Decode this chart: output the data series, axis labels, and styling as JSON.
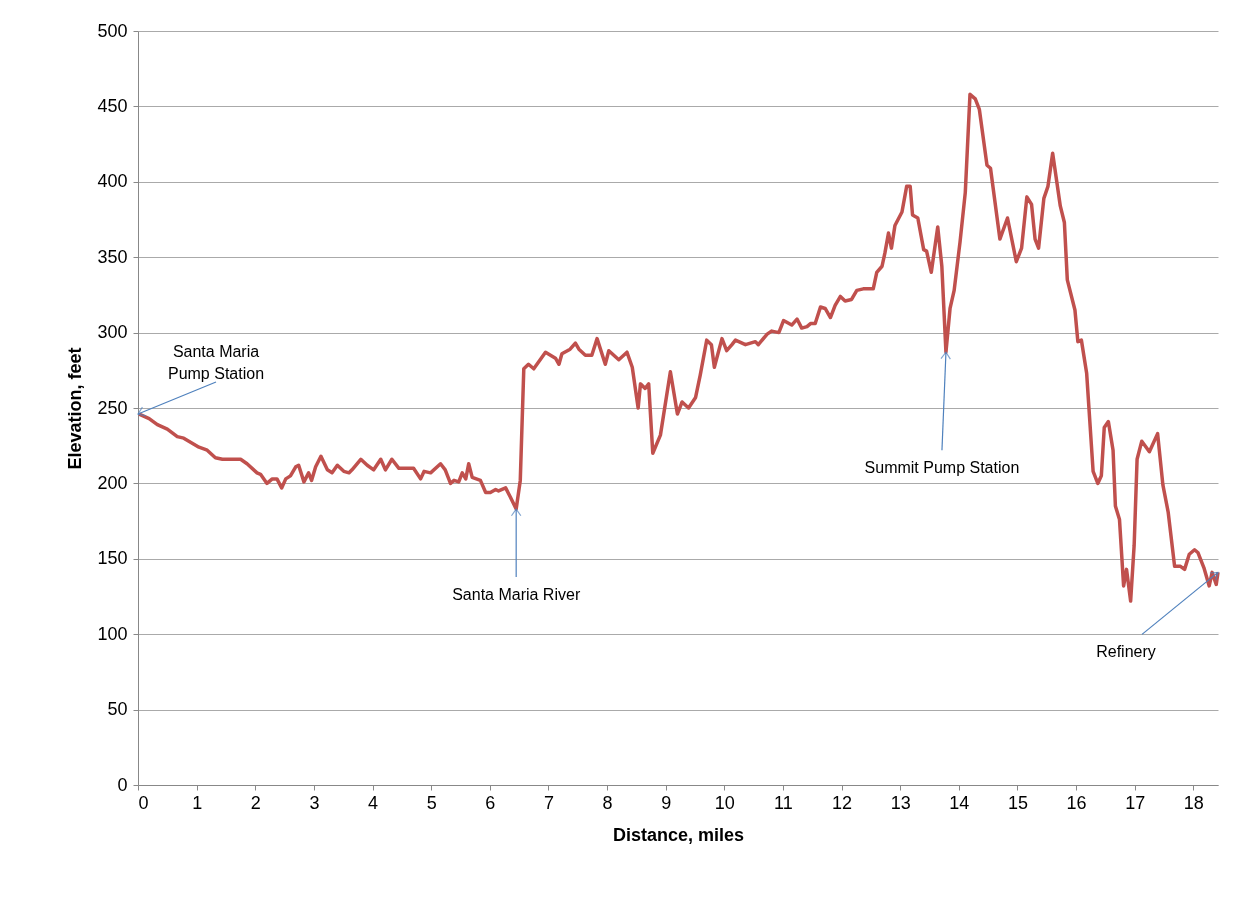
{
  "chart_data": {
    "type": "line",
    "xlabel": "Distance, miles",
    "ylabel": "Elevation, feet",
    "xlim": [
      0,
      18.42
    ],
    "xticks": [
      0,
      1,
      2,
      3,
      4,
      5,
      6,
      7,
      8,
      9,
      10,
      11,
      12,
      13,
      14,
      15,
      16,
      17,
      18
    ],
    "ylim": [
      0,
      500
    ],
    "yticks": [
      0,
      50,
      100,
      150,
      200,
      250,
      300,
      350,
      400,
      450,
      500
    ],
    "grid": "y",
    "series": [
      {
        "color": "#c0504d",
        "x": [
          0.02,
          0.19,
          0.33,
          0.5,
          0.67,
          0.78,
          1.04,
          1.18,
          1.32,
          1.44,
          1.75,
          1.86,
          2.03,
          2.09,
          2.2,
          2.29,
          2.37,
          2.45,
          2.52,
          2.6,
          2.69,
          2.74,
          2.83,
          2.91,
          2.96,
          3.03,
          3.12,
          3.23,
          3.31,
          3.4,
          3.51,
          3.6,
          3.65,
          3.8,
          3.91,
          4.02,
          4.14,
          4.22,
          4.33,
          4.45,
          4.7,
          4.82,
          4.88,
          4.99,
          5.16,
          5.24,
          5.33,
          5.39,
          5.47,
          5.53,
          5.59,
          5.64,
          5.7,
          5.84,
          5.93,
          6.01,
          6.1,
          6.15,
          6.27,
          6.35,
          6.45,
          6.52,
          6.58,
          6.66,
          6.75,
          6.95,
          7.12,
          7.18,
          7.23,
          7.37,
          7.46,
          7.52,
          7.63,
          7.74,
          7.83,
          7.97,
          8.03,
          8.2,
          8.34,
          8.43,
          8.53,
          8.57,
          8.65,
          8.71,
          8.78,
          8.91,
          9.08,
          9.2,
          9.28,
          9.39,
          9.51,
          9.59,
          9.7,
          9.78,
          9.83,
          9.96,
          10.04,
          10.13,
          10.19,
          10.36,
          10.53,
          10.58,
          10.73,
          10.81,
          10.93,
          11.01,
          11.15,
          11.24,
          11.32,
          11.41,
          11.47,
          11.55,
          11.64,
          11.72,
          11.81,
          11.89,
          11.98,
          12.06,
          12.17,
          12.26,
          12.37,
          12.54,
          12.6,
          12.69,
          12.74,
          12.8,
          12.85,
          12.91,
          13.03,
          13.11,
          13.17,
          13.21,
          13.3,
          13.4,
          13.45,
          13.53,
          13.64,
          13.71,
          13.78,
          13.85,
          13.92,
          14.02,
          14.11,
          14.19,
          14.28,
          14.35,
          14.48,
          14.54,
          14.7,
          14.83,
          14.98,
          15.07,
          15.16,
          15.24,
          15.3,
          15.36,
          15.45,
          15.52,
          15.6,
          15.73,
          15.8,
          15.85,
          15.98,
          16.03,
          16.09,
          16.18,
          16.29,
          16.37,
          16.43,
          16.48,
          16.55,
          16.63,
          16.67,
          16.74,
          16.81,
          16.86,
          16.93,
          16.99,
          17.04,
          17.12,
          17.25,
          17.39,
          17.48,
          17.57,
          17.68,
          17.78,
          17.85,
          17.93,
          18.02,
          18.08,
          18.18,
          18.27,
          18.32,
          18.39,
          18.42
        ],
        "values": [
          246,
          243,
          239,
          236,
          231,
          230,
          224,
          222,
          217,
          216,
          216,
          213,
          207,
          206,
          200,
          203,
          203,
          197,
          203,
          205,
          211,
          212,
          201,
          207,
          202,
          211,
          218,
          209,
          207,
          212,
          208,
          207,
          209,
          216,
          212,
          209,
          216,
          209,
          216,
          210,
          210,
          203,
          208,
          207,
          213,
          209,
          200,
          202,
          201,
          207,
          203,
          213,
          204,
          202,
          194,
          194,
          196,
          195,
          197,
          191,
          183,
          202,
          276,
          279,
          276,
          287,
          283,
          279,
          286,
          289,
          293,
          289,
          285,
          285,
          296,
          279,
          288,
          282,
          287,
          277,
          250,
          266,
          263,
          266,
          220,
          232,
          274,
          246,
          254,
          250,
          257,
          272,
          295,
          292,
          277,
          296,
          288,
          292,
          295,
          292,
          294,
          292,
          299,
          301,
          300,
          308,
          305,
          309,
          303,
          304,
          306,
          306,
          317,
          316,
          310,
          318,
          324,
          321,
          322,
          328,
          329,
          329,
          340,
          344,
          353,
          366,
          356,
          371,
          380,
          397,
          397,
          378,
          376,
          355,
          354,
          340,
          370,
          344,
          287,
          316,
          328,
          360,
          393,
          458,
          455,
          448,
          411,
          409,
          362,
          376,
          347,
          356,
          390,
          385,
          362,
          356,
          389,
          397,
          419,
          384,
          373,
          335,
          315,
          294,
          295,
          273,
          208,
          200,
          205,
          237,
          241,
          222,
          185,
          176,
          132,
          143,
          122,
          159,
          216,
          228,
          221,
          233,
          199,
          181,
          145,
          145,
          143,
          153,
          156,
          154,
          144,
          132,
          141,
          133,
          141
        ]
      }
    ],
    "annotations": [
      {
        "text": "Santa Maria Pump Station",
        "x": 0,
        "y": 246
      },
      {
        "text": "Santa Maria River",
        "x": 6.45,
        "y": 183
      },
      {
        "text": "Summit Pump Station",
        "x": 13.78,
        "y": 287
      },
      {
        "text": "Refinery",
        "x": 18.42,
        "y": 141
      }
    ]
  }
}
